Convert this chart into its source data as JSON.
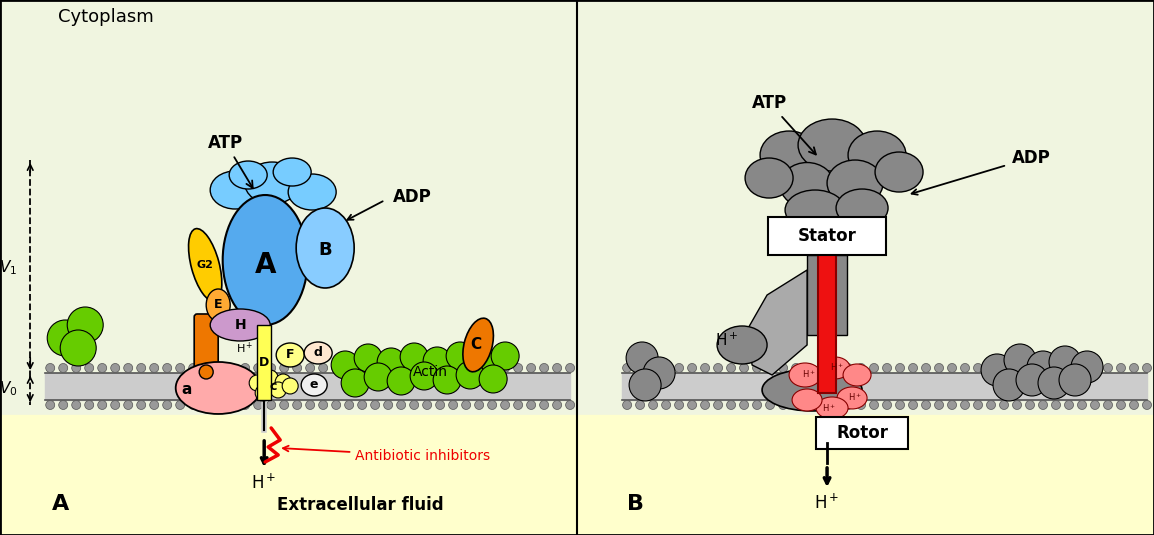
{
  "bg_cytoplasm": "#f0f5e0",
  "bg_extracellular": "#ffffcc",
  "membrane_fill": "#cccccc",
  "membrane_line": "#555555",
  "cyan_A": "#55aaee",
  "cyan_B": "#88ccff",
  "cyan_cap": "#77ccff",
  "yellow_G2": "#ffcc00",
  "orange_stalk": "#ee7700",
  "orange_E": "#ffaa33",
  "purple_H": "#cc99cc",
  "pink_a": "#ffaaaa",
  "yellow_D": "#ffff55",
  "yellow_c": "#ffff77",
  "white_e": "#f0f0f0",
  "green_actin": "#66cc00",
  "orange_C": "#ee7700",
  "gray_stator": "#888888",
  "gray_light": "#aaaaaa",
  "red_shaft": "#ee1111",
  "pink_rotor": "#ff8888",
  "red_lightning": "#ee0000",
  "black": "#000000",
  "white": "#ffffff",
  "label_cytoplasm": "Cytoplasm",
  "label_extracellular": "Extracellular fluid",
  "label_atp": "ATP",
  "label_adp": "ADP",
  "label_actin": "Actin",
  "label_stator": "Stator",
  "label_rotor": "Rotor",
  "label_antibiotic": "Antibiotic inhibitors",
  "label_A": "A",
  "label_B": "B",
  "label_panel_A": "A",
  "label_panel_B": "B",
  "label_v1": "$V_1$",
  "label_v0": "$V_0$",
  "label_a": "a",
  "label_G2": "G2",
  "label_E": "E",
  "label_H": "H",
  "label_D": "D",
  "label_F": "F",
  "label_d": "d",
  "label_c": "c",
  "label_e": "e",
  "label_C": "C",
  "label_hplus": "H$^+$"
}
